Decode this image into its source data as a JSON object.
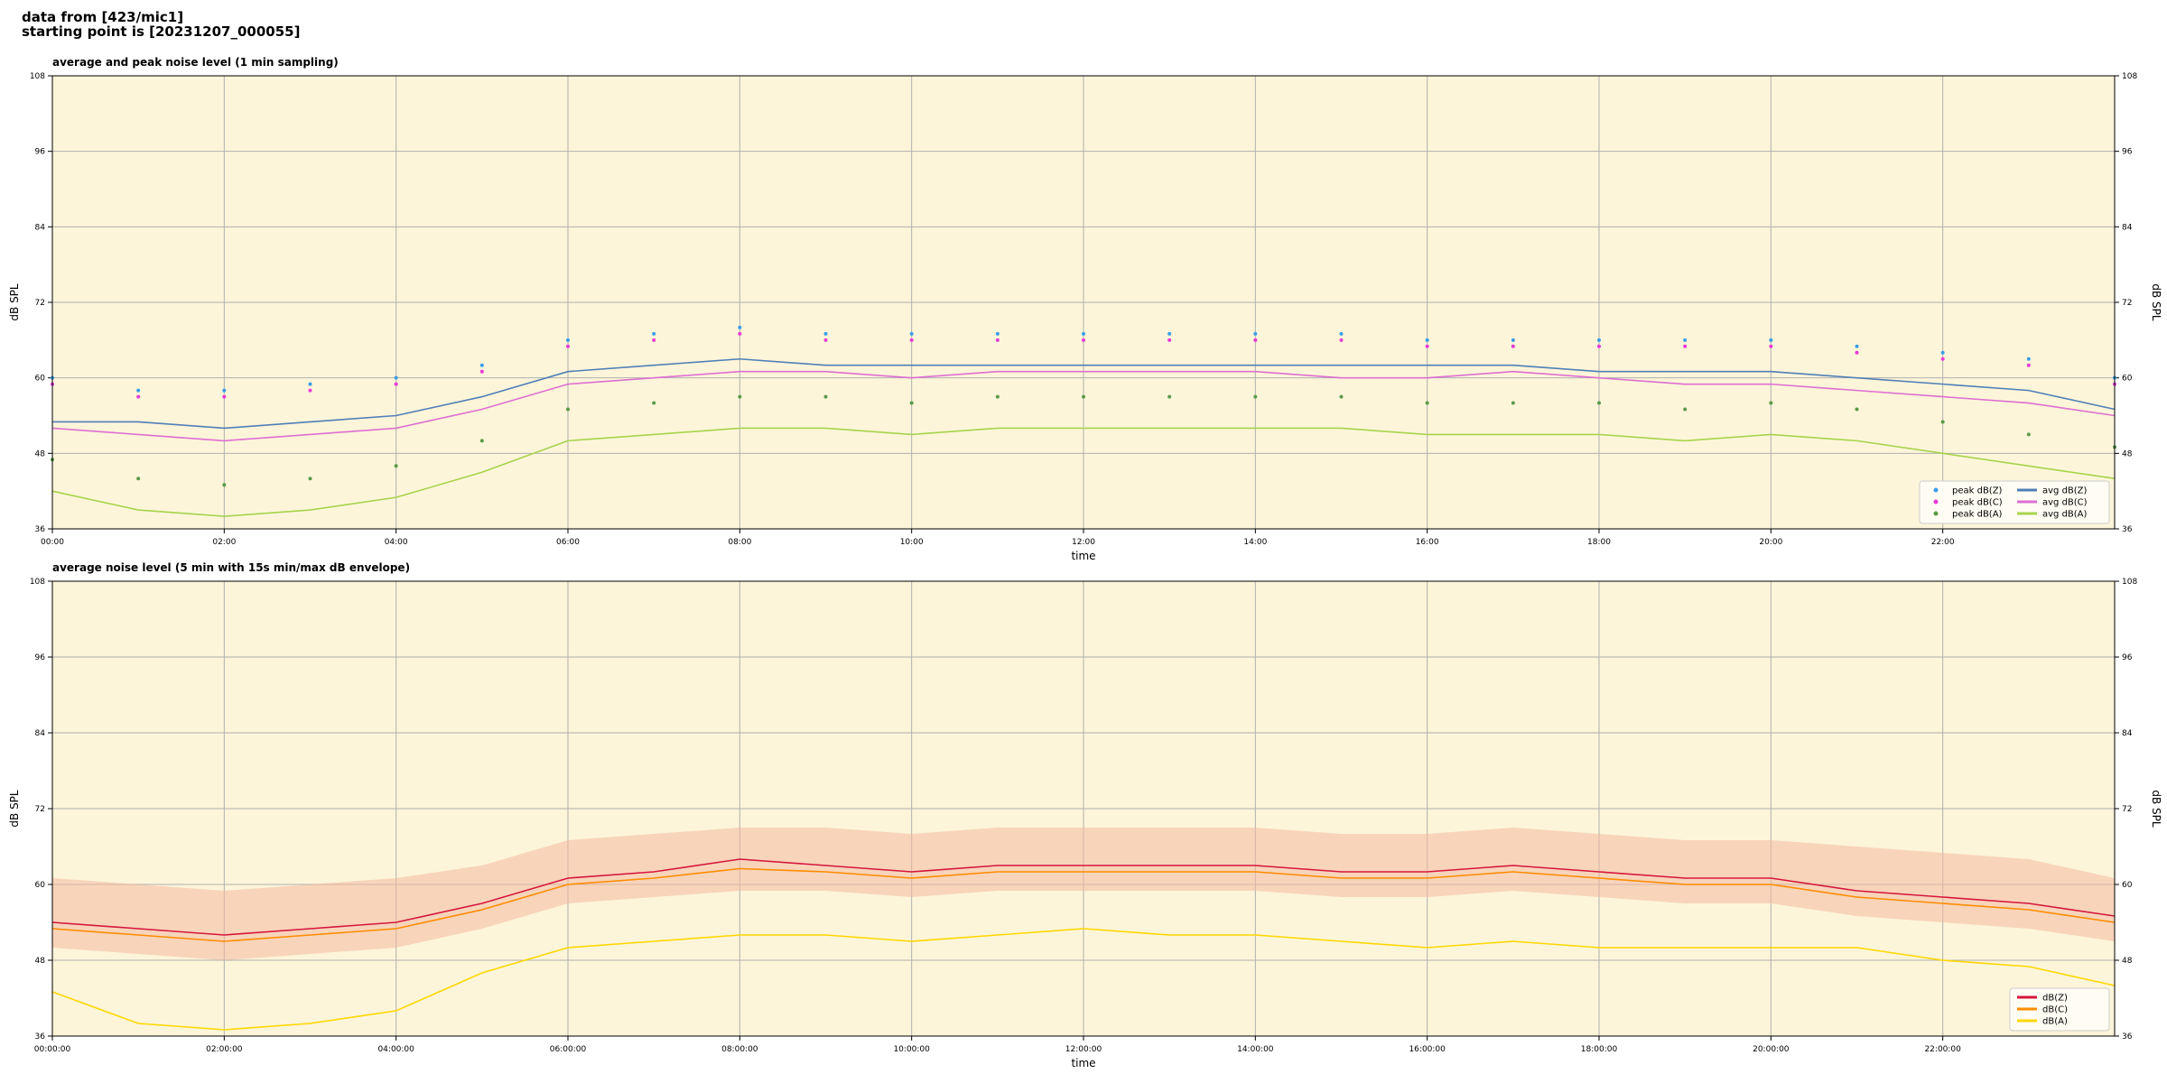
{
  "header": [
    "data from [423/mic1]",
    "starting point is [20231207_000055]"
  ],
  "chart_data": [
    {
      "type": "line",
      "title": "average and peak noise level (1 min sampling)",
      "xlabel": "time",
      "ylabel": "dB SPL",
      "y2label": "dB SPL",
      "xlim": [
        0,
        24
      ],
      "ylim": [
        36,
        108
      ],
      "xticks": [
        {
          "value": 0,
          "label": "00:00"
        },
        {
          "value": 2,
          "label": "02:00"
        },
        {
          "value": 4,
          "label": "04:00"
        },
        {
          "value": 6,
          "label": "06:00"
        },
        {
          "value": 8,
          "label": "08:00"
        },
        {
          "value": 10,
          "label": "10:00"
        },
        {
          "value": 12,
          "label": "12:00"
        },
        {
          "value": 14,
          "label": "14:00"
        },
        {
          "value": 16,
          "label": "16:00"
        },
        {
          "value": 18,
          "label": "18:00"
        },
        {
          "value": 20,
          "label": "20:00"
        },
        {
          "value": 22,
          "label": "22:00"
        }
      ],
      "yticks": [
        36,
        48,
        60,
        72,
        84,
        96,
        108
      ],
      "grid": true,
      "legend": "lower right",
      "legend_columns": 2,
      "background": "#fdf5d9",
      "x": [
        0,
        1,
        2,
        3,
        4,
        5,
        6,
        7,
        8,
        9,
        10,
        11,
        12,
        13,
        14,
        15,
        16,
        17,
        18,
        19,
        20,
        21,
        22,
        23,
        24
      ],
      "series": [
        {
          "name": "peak dB(Z)",
          "style": "points",
          "color": "#3a9ee8",
          "values": [
            60,
            58,
            58,
            59,
            60,
            62,
            66,
            67,
            68,
            67,
            67,
            67,
            67,
            67,
            67,
            67,
            66,
            66,
            66,
            66,
            66,
            65,
            64,
            63,
            60
          ]
        },
        {
          "name": "peak dB(C)",
          "style": "points",
          "color": "#e83ad8",
          "values": [
            59,
            57,
            57,
            58,
            59,
            61,
            65,
            66,
            67,
            66,
            66,
            66,
            66,
            66,
            66,
            66,
            65,
            65,
            65,
            65,
            65,
            64,
            63,
            62,
            59
          ]
        },
        {
          "name": "peak dB(A)",
          "style": "points",
          "color": "#5a9a4a",
          "values": [
            47,
            44,
            43,
            44,
            46,
            50,
            55,
            56,
            57,
            57,
            56,
            57,
            57,
            57,
            57,
            57,
            56,
            56,
            56,
            55,
            56,
            55,
            53,
            51,
            49
          ]
        },
        {
          "name": "avg dB(Z)",
          "style": "line",
          "color": "#4f7fb8",
          "values": [
            53,
            53,
            52,
            53,
            54,
            57,
            61,
            62,
            63,
            62,
            62,
            62,
            62,
            62,
            62,
            62,
            62,
            62,
            61,
            61,
            61,
            60,
            59,
            58,
            55
          ]
        },
        {
          "name": "avg dB(C)",
          "style": "line",
          "color": "#dd6fd3",
          "values": [
            52,
            51,
            50,
            51,
            52,
            55,
            59,
            60,
            61,
            61,
            60,
            61,
            61,
            61,
            61,
            60,
            60,
            61,
            60,
            59,
            59,
            58,
            57,
            56,
            54
          ]
        },
        {
          "name": "avg dB(A)",
          "style": "line",
          "color": "#a7d34d",
          "values": [
            42,
            39,
            38,
            39,
            41,
            45,
            50,
            51,
            52,
            52,
            51,
            52,
            52,
            52,
            52,
            52,
            51,
            51,
            51,
            50,
            51,
            50,
            48,
            46,
            44
          ]
        }
      ]
    },
    {
      "type": "line",
      "title": "average noise level (5 min with 15s min/max dB envelope)",
      "xlabel": "time",
      "ylabel": "dB SPL",
      "y2label": "dB SPL",
      "xlim": [
        0,
        24
      ],
      "ylim": [
        36,
        108
      ],
      "xticks": [
        {
          "value": 0,
          "label": "00:00:00"
        },
        {
          "value": 2,
          "label": "02:00:00"
        },
        {
          "value": 4,
          "label": "04:00:00"
        },
        {
          "value": 6,
          "label": "06:00:00"
        },
        {
          "value": 8,
          "label": "08:00:00"
        },
        {
          "value": 10,
          "label": "10:00:00"
        },
        {
          "value": 12,
          "label": "12:00:00"
        },
        {
          "value": 14,
          "label": "14:00:00"
        },
        {
          "value": 16,
          "label": "16:00:00"
        },
        {
          "value": 18,
          "label": "18:00:00"
        },
        {
          "value": 20,
          "label": "20:00:00"
        },
        {
          "value": 22,
          "label": "22:00:00"
        }
      ],
      "yticks": [
        36,
        48,
        60,
        72,
        84,
        96,
        108
      ],
      "grid": true,
      "legend": "lower right",
      "legend_columns": 1,
      "background": "#fdf5d9",
      "x": [
        0,
        1,
        2,
        3,
        4,
        5,
        6,
        7,
        8,
        9,
        10,
        11,
        12,
        13,
        14,
        15,
        16,
        17,
        18,
        19,
        20,
        21,
        22,
        23,
        24
      ],
      "envelope": {
        "color": "#f4b8a0",
        "max": [
          61,
          60,
          59,
          60,
          61,
          63,
          67,
          68,
          69,
          69,
          68,
          69,
          69,
          69,
          69,
          68,
          68,
          69,
          68,
          67,
          67,
          66,
          65,
          64,
          61
        ],
        "min": [
          50,
          49,
          48,
          49,
          50,
          53,
          57,
          58,
          59,
          59,
          58,
          59,
          59,
          59,
          59,
          58,
          58,
          59,
          58,
          57,
          57,
          55,
          54,
          53,
          51
        ]
      },
      "series": [
        {
          "name": "dB(Z)",
          "style": "line",
          "color": "#d6163c",
          "values": [
            54,
            53,
            52,
            53,
            54,
            57,
            61,
            62,
            64,
            63,
            62,
            63,
            63,
            63,
            63,
            62,
            62,
            63,
            62,
            61,
            61,
            59,
            58,
            57,
            55
          ]
        },
        {
          "name": "dB(C)",
          "style": "line",
          "color": "#ff8c00",
          "values": [
            53,
            52,
            51,
            52,
            53,
            56,
            60,
            61,
            62.5,
            62,
            61,
            62,
            62,
            62,
            62,
            61,
            61,
            62,
            61,
            60,
            60,
            58,
            57,
            56,
            54
          ]
        },
        {
          "name": "dB(A)",
          "style": "line",
          "color": "#ffd700",
          "values": [
            43,
            38,
            37,
            38,
            40,
            46,
            50,
            51,
            52,
            52,
            51,
            52,
            53,
            52,
            52,
            51,
            50,
            51,
            50,
            50,
            50,
            50,
            48,
            47,
            44
          ]
        }
      ]
    }
  ]
}
